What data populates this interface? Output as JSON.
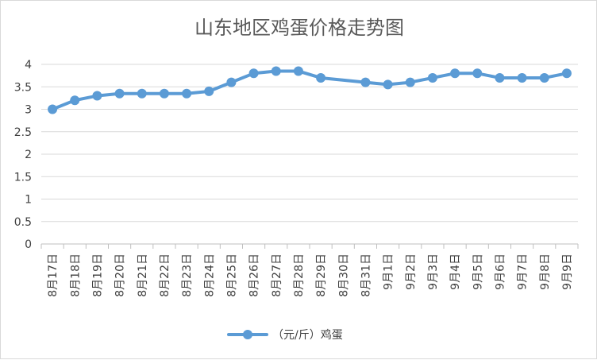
{
  "chart_data": {
    "type": "line",
    "title": "山东地区鸡蛋价格走势图",
    "xlabel": "",
    "ylabel": "",
    "categories": [
      "8月17日",
      "8月18日",
      "8月19日",
      "8月20日",
      "8月21日",
      "8月22日",
      "8月23日",
      "8月24日",
      "8月25日",
      "8月26日",
      "8月27日",
      "8月28日",
      "8月29日",
      "8月30日",
      "8月31日",
      "9月1日",
      "9月2日",
      "9月3日",
      "9月4日",
      "9月5日",
      "9月6日",
      "9月7日",
      "9月8日",
      "9月9日"
    ],
    "series": [
      {
        "name": "（元/斤）鸡蛋",
        "color": "#5b9bd5",
        "values": [
          3.0,
          3.2,
          3.3,
          3.35,
          3.35,
          3.35,
          3.35,
          3.4,
          3.6,
          3.8,
          3.85,
          3.85,
          3.7,
          null,
          3.6,
          3.55,
          3.6,
          3.7,
          3.8,
          3.8,
          3.7,
          3.7,
          3.7,
          3.8
        ]
      }
    ],
    "ylim": [
      0,
      4
    ],
    "yticks": [
      "0",
      "0.5",
      "1",
      "1.5",
      "2",
      "2.5",
      "3",
      "3.5",
      "4"
    ],
    "grid": true,
    "legend": "bottom"
  }
}
